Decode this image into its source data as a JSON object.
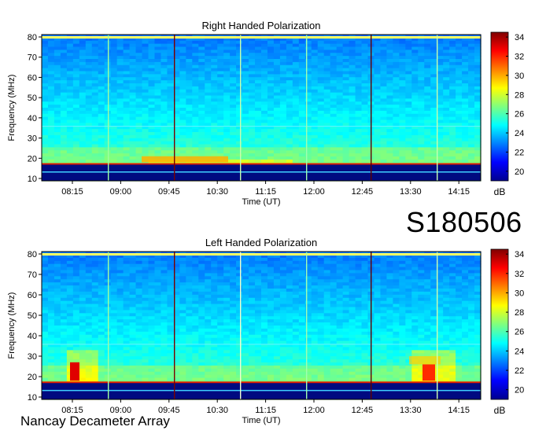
{
  "observation_id": "S180506",
  "footer": "Nancay Decameter Array",
  "chart_data": [
    {
      "type": "heatmap",
      "title": "Right Handed Polarization",
      "xlabel": "Time (UT)",
      "ylabel": "Frequency (MHz)",
      "x_ticks": [
        "08:15",
        "09:00",
        "09:45",
        "10:30",
        "11:15",
        "12:00",
        "12:45",
        "13:30",
        "14:15"
      ],
      "y_ticks": [
        10,
        20,
        30,
        40,
        50,
        60,
        70,
        80
      ],
      "ylim": [
        10,
        80
      ],
      "colorbar": {
        "label": "dB",
        "ticks": [
          20,
          22,
          24,
          26,
          28,
          30,
          32,
          34
        ],
        "range": [
          19,
          34.5
        ]
      }
    },
    {
      "type": "heatmap",
      "title": "Left Handed Polarization",
      "xlabel": "Time (UT)",
      "ylabel": "Frequency (MHz)",
      "x_ticks": [
        "08:15",
        "09:00",
        "09:45",
        "10:30",
        "11:15",
        "12:00",
        "12:45",
        "13:30",
        "14:15"
      ],
      "y_ticks": [
        10,
        20,
        30,
        40,
        50,
        60,
        70,
        80
      ],
      "ylim": [
        10,
        80
      ],
      "colorbar": {
        "label": "dB",
        "ticks": [
          20,
          22,
          24,
          26,
          28,
          30,
          32,
          34
        ],
        "range": [
          19,
          34.5
        ]
      }
    }
  ]
}
